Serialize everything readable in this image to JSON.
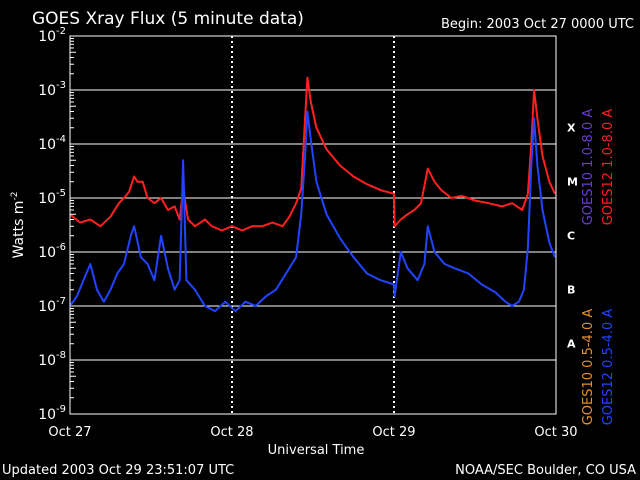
{
  "colors": {
    "background": "#000000",
    "frame": "#ffffff",
    "goes12_long": "#ff2020",
    "goes12_short": "#2244ff",
    "goes10_long": "#6a3cd6",
    "goes10_short": "#e8902a"
  },
  "header": {
    "title": "GOES Xray Flux (5 minute data)",
    "begin": "Begin:  2003 Oct 27 0000 UTC"
  },
  "footer": {
    "updated": "Updated 2003 Oct 29 23:51:07 UTC",
    "credit": "NOAA/SEC Boulder, CO USA"
  },
  "chart_data": {
    "type": "line",
    "title": "GOES Xray Flux (5 minute data)",
    "xlabel": "Universal Time",
    "ylabel": "Watts m",
    "ylabel_superscript": "-2",
    "y_scale": "log",
    "ylim": [
      1e-09,
      0.01
    ],
    "y_tick_labels": [
      {
        "value": 0.01,
        "base": "10",
        "exp": "-2"
      },
      {
        "value": 0.001,
        "base": "10",
        "exp": "-3"
      },
      {
        "value": 0.0001,
        "base": "10",
        "exp": "-4"
      },
      {
        "value": 1e-05,
        "base": "10",
        "exp": "-5"
      },
      {
        "value": 1e-06,
        "base": "10",
        "exp": "-6"
      },
      {
        "value": 1e-07,
        "base": "10",
        "exp": "-7"
      },
      {
        "value": 1e-08,
        "base": "10",
        "exp": "-8"
      },
      {
        "value": 1e-09,
        "base": "10",
        "exp": "-9"
      }
    ],
    "xlim": [
      "2003-10-27 00:00",
      "2003-10-30 00:00"
    ],
    "x_ticks": [
      {
        "date": "2003-10-27",
        "label": "Oct 27"
      },
      {
        "date": "2003-10-28",
        "label": "Oct 28"
      },
      {
        "date": "2003-10-29",
        "label": "Oct 29"
      },
      {
        "date": "2003-10-30",
        "label": "Oct 30"
      }
    ],
    "grid": "horizontal lines at each decade; dotted vertical lines at day boundaries",
    "flare_classes": [
      {
        "label": "X",
        "value": 0.0002
      },
      {
        "label": "M",
        "value": 2e-05
      },
      {
        "label": "C",
        "value": 2e-06
      },
      {
        "label": "B",
        "value": 2e-07
      },
      {
        "label": "A",
        "value": 2e-08
      }
    ],
    "legend_placement": "right, vertical",
    "legend": [
      {
        "label": "GOES10 1.0-8.0 A",
        "color": "#6a3cd6"
      },
      {
        "label": "GOES12 1.0-8.0 A",
        "color": "#ff2020"
      },
      {
        "label": "GOES10 0.5-4.0 A",
        "color": "#e8902a"
      },
      {
        "label": "GOES12 0.5-4.0 A",
        "color": "#2244ff"
      }
    ],
    "series": [
      {
        "name": "GOES12 1.0-8.0 A",
        "color": "#ff2020",
        "points": [
          [
            "2003-10-27 00:00",
            5e-06
          ],
          [
            "2003-10-27 01:30",
            3.5e-06
          ],
          [
            "2003-10-27 03:00",
            4e-06
          ],
          [
            "2003-10-27 04:30",
            3e-06
          ],
          [
            "2003-10-27 06:00",
            4.5e-06
          ],
          [
            "2003-10-27 07:15",
            8e-06
          ],
          [
            "2003-10-27 08:00",
            1e-05
          ],
          [
            "2003-10-27 08:45",
            1.3e-05
          ],
          [
            "2003-10-27 09:30",
            2.5e-05
          ],
          [
            "2003-10-27 10:00",
            2e-05
          ],
          [
            "2003-10-27 10:45",
            2e-05
          ],
          [
            "2003-10-27 11:30",
            1e-05
          ],
          [
            "2003-10-27 12:30",
            8e-06
          ],
          [
            "2003-10-27 13:30",
            1e-05
          ],
          [
            "2003-10-27 14:30",
            6e-06
          ],
          [
            "2003-10-27 15:30",
            7e-06
          ],
          [
            "2003-10-27 16:15",
            4e-06
          ],
          [
            "2003-10-27 16:45",
            1.5e-05
          ],
          [
            "2003-10-27 17:30",
            4e-06
          ],
          [
            "2003-10-27 18:30",
            3e-06
          ],
          [
            "2003-10-27 20:00",
            4e-06
          ],
          [
            "2003-10-27 21:00",
            3e-06
          ],
          [
            "2003-10-27 22:30",
            2.5e-06
          ],
          [
            "2003-10-28 00:00",
            3e-06
          ],
          [
            "2003-10-28 01:30",
            2.5e-06
          ],
          [
            "2003-10-28 03:00",
            3e-06
          ],
          [
            "2003-10-28 04:30",
            3e-06
          ],
          [
            "2003-10-28 06:00",
            3.5e-06
          ],
          [
            "2003-10-28 07:30",
            3e-06
          ],
          [
            "2003-10-28 08:30",
            4.5e-06
          ],
          [
            "2003-10-28 09:30",
            8e-06
          ],
          [
            "2003-10-28 10:15",
            1.5e-05
          ],
          [
            "2003-10-28 10:50",
            0.0003
          ],
          [
            "2003-10-28 11:10",
            0.0017
          ],
          [
            "2003-10-28 11:40",
            0.0006
          ],
          [
            "2003-10-28 12:30",
            0.0002
          ],
          [
            "2003-10-28 14:00",
            8e-05
          ],
          [
            "2003-10-28 16:00",
            4e-05
          ],
          [
            "2003-10-28 18:00",
            2.5e-05
          ],
          [
            "2003-10-28 20:00",
            1.8e-05
          ],
          [
            "2003-10-28 22:00",
            1.4e-05
          ],
          [
            "2003-10-29 00:00",
            1.2e-05
          ],
          [
            "2003-10-29 00:05",
            3e-06
          ],
          [
            "2003-10-29 01:00",
            4e-06
          ],
          [
            "2003-10-29 02:00",
            5e-06
          ],
          [
            "2003-10-29 03:00",
            6e-06
          ],
          [
            "2003-10-29 04:00",
            8e-06
          ],
          [
            "2003-10-29 05:00",
            3.5e-05
          ],
          [
            "2003-10-29 06:00",
            2e-05
          ],
          [
            "2003-10-29 07:00",
            1.4e-05
          ],
          [
            "2003-10-29 08:30",
            1e-05
          ],
          [
            "2003-10-29 10:00",
            1.1e-05
          ],
          [
            "2003-10-29 12:00",
            9e-06
          ],
          [
            "2003-10-29 14:00",
            8e-06
          ],
          [
            "2003-10-29 16:00",
            7e-06
          ],
          [
            "2003-10-29 17:30",
            8e-06
          ],
          [
            "2003-10-29 19:00",
            6e-06
          ],
          [
            "2003-10-29 19:50",
            1.2e-05
          ],
          [
            "2003-10-29 20:20",
            0.0001
          ],
          [
            "2003-10-29 20:45",
            0.001
          ],
          [
            "2003-10-29 21:15",
            0.0003
          ],
          [
            "2003-10-29 22:00",
            6e-05
          ],
          [
            "2003-10-29 23:00",
            2e-05
          ],
          [
            "2003-10-29 23:50",
            1.2e-05
          ]
        ]
      },
      {
        "name": "GOES12 0.5-4.0 A",
        "color": "#2244ff",
        "points": [
          [
            "2003-10-27 00:00",
            1e-07
          ],
          [
            "2003-10-27 01:00",
            1.5e-07
          ],
          [
            "2003-10-27 02:00",
            3e-07
          ],
          [
            "2003-10-27 03:00",
            6e-07
          ],
          [
            "2003-10-27 04:00",
            2e-07
          ],
          [
            "2003-10-27 05:00",
            1.2e-07
          ],
          [
            "2003-10-27 06:00",
            2e-07
          ],
          [
            "2003-10-27 07:00",
            4e-07
          ],
          [
            "2003-10-27 08:00",
            6e-07
          ],
          [
            "2003-10-27 09:00",
            2e-06
          ],
          [
            "2003-10-27 09:30",
            3e-06
          ],
          [
            "2003-10-27 10:30",
            8e-07
          ],
          [
            "2003-10-27 11:30",
            6e-07
          ],
          [
            "2003-10-27 12:30",
            3e-07
          ],
          [
            "2003-10-27 13:30",
            2e-06
          ],
          [
            "2003-10-27 14:30",
            5e-07
          ],
          [
            "2003-10-27 15:30",
            2e-07
          ],
          [
            "2003-10-27 16:15",
            3e-07
          ],
          [
            "2003-10-27 16:45",
            5e-05
          ],
          [
            "2003-10-27 17:15",
            3e-07
          ],
          [
            "2003-10-27 18:30",
            2e-07
          ],
          [
            "2003-10-27 20:00",
            1e-07
          ],
          [
            "2003-10-27 21:30",
            8e-08
          ],
          [
            "2003-10-27 23:00",
            1.2e-07
          ],
          [
            "2003-10-28 00:30",
            8e-08
          ],
          [
            "2003-10-28 02:00",
            1.2e-07
          ],
          [
            "2003-10-28 03:30",
            1e-07
          ],
          [
            "2003-10-28 05:00",
            1.5e-07
          ],
          [
            "2003-10-28 06:30",
            2e-07
          ],
          [
            "2003-10-28 08:00",
            4e-07
          ],
          [
            "2003-10-28 09:30",
            8e-07
          ],
          [
            "2003-10-28 10:15",
            5e-06
          ],
          [
            "2003-10-28 10:50",
            6e-05
          ],
          [
            "2003-10-28 11:10",
            0.0004
          ],
          [
            "2003-10-28 11:40",
            0.00012
          ],
          [
            "2003-10-28 12:30",
            2e-05
          ],
          [
            "2003-10-28 14:00",
            5e-06
          ],
          [
            "2003-10-28 16:00",
            1.8e-06
          ],
          [
            "2003-10-28 18:00",
            8e-07
          ],
          [
            "2003-10-28 20:00",
            4e-07
          ],
          [
            "2003-10-28 22:00",
            3e-07
          ],
          [
            "2003-10-29 00:00",
            2.5e-07
          ],
          [
            "2003-10-29 00:05",
            1.5e-07
          ],
          [
            "2003-10-29 01:00",
            1e-06
          ],
          [
            "2003-10-29 02:00",
            5e-07
          ],
          [
            "2003-10-29 03:30",
            3e-07
          ],
          [
            "2003-10-29 04:30",
            6e-07
          ],
          [
            "2003-10-29 05:00",
            3e-06
          ],
          [
            "2003-10-29 06:00",
            1e-06
          ],
          [
            "2003-10-29 07:30",
            6e-07
          ],
          [
            "2003-10-29 09:00",
            5e-07
          ],
          [
            "2003-10-29 11:00",
            4e-07
          ],
          [
            "2003-10-29 13:00",
            2.5e-07
          ],
          [
            "2003-10-29 15:00",
            1.8e-07
          ],
          [
            "2003-10-29 16:30",
            1.2e-07
          ],
          [
            "2003-10-29 17:30",
            1e-07
          ],
          [
            "2003-10-29 18:30",
            1.2e-07
          ],
          [
            "2003-10-29 19:15",
            2e-07
          ],
          [
            "2003-10-29 19:50",
            1.2e-06
          ],
          [
            "2003-10-29 20:20",
            4e-05
          ],
          [
            "2003-10-29 20:45",
            0.0003
          ],
          [
            "2003-10-29 21:15",
            4e-05
          ],
          [
            "2003-10-29 22:00",
            6e-06
          ],
          [
            "2003-10-29 23:00",
            1.5e-06
          ],
          [
            "2003-10-29 23:50",
            8e-07
          ]
        ]
      }
    ]
  }
}
